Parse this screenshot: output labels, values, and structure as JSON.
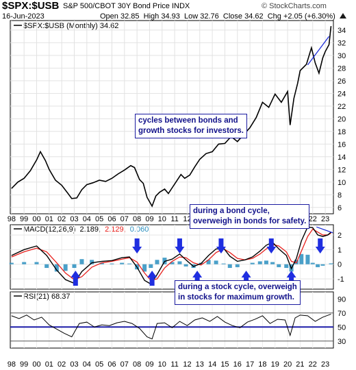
{
  "header": {
    "symbol": "$SPX:$USB",
    "name": "S&P 500/CBOT 30Y Bond Price INDX",
    "watermark": "© StockCharts.com",
    "date": "16-Jun-2023",
    "open_label": "Open",
    "open": "32.85",
    "high_label": "High",
    "high": "34.93",
    "low_label": "Low",
    "low": "32.76",
    "close_label": "Close",
    "close": "34.62",
    "chg_label": "Chg",
    "chg": "+2.05 (+6.30%)"
  },
  "annotations": {
    "cycles": [
      "cycles between bonds and",
      "growth stocks for investors."
    ],
    "bond": [
      "during a bond cycle,",
      "overweigh in bonds for safety."
    ],
    "stock": [
      "during a stock cycle, overweigh",
      "in stocks for maximum growth."
    ]
  },
  "colors": {
    "price": "#000000",
    "macd_signal": "#e8211d",
    "macd_hist": "#2a8fbf",
    "arrows": "#1f2ee0",
    "trendline": "#1a2ad8",
    "rsi_line": "#1c1ca8",
    "annotation_text": "#12128a"
  },
  "chart_data": [
    {
      "type": "line",
      "legend": "$SPX:$USB (Monthly) 34.62",
      "x_tick_labels": [
        "98",
        "99",
        "00",
        "01",
        "02",
        "03",
        "04",
        "05",
        "06",
        "07",
        "08",
        "09",
        "10",
        "11",
        "12",
        "13",
        "14",
        "15",
        "16",
        "17",
        "18",
        "19",
        "20",
        "21",
        "22",
        "23"
      ],
      "y_ticks": [
        6,
        8,
        10,
        12,
        14,
        16,
        18,
        20,
        22,
        24,
        26,
        28,
        30,
        32,
        34
      ],
      "ylim": [
        5,
        35.5
      ],
      "series": [
        {
          "name": "$SPX:$USB",
          "x": [
            1998.0,
            1998.5,
            1999.0,
            1999.5,
            2000.0,
            2000.3,
            2000.7,
            2001.0,
            2001.5,
            2002.0,
            2002.5,
            2002.8,
            2003.2,
            2003.6,
            2004.0,
            2004.5,
            2005.0,
            2005.5,
            2006.0,
            2006.5,
            2007.0,
            2007.5,
            2007.8,
            2008.2,
            2008.5,
            2008.8,
            2009.2,
            2009.5,
            2009.8,
            2010.2,
            2010.5,
            2011.0,
            2011.5,
            2011.8,
            2012.2,
            2012.6,
            2013.0,
            2013.5,
            2014.0,
            2014.5,
            2015.0,
            2015.5,
            2016.0,
            2016.5,
            2017.0,
            2017.5,
            2018.0,
            2018.5,
            2019.0,
            2019.5,
            2020.0,
            2020.2,
            2020.5,
            2020.8,
            2021.0,
            2021.5,
            2021.9,
            2022.2,
            2022.5,
            2022.8,
            2023.0,
            2023.3,
            2023.46
          ],
          "values": [
            9.0,
            10.0,
            10.6,
            11.8,
            13.5,
            14.8,
            13.4,
            12.0,
            10.3,
            9.5,
            8.2,
            7.4,
            7.5,
            8.8,
            9.6,
            9.9,
            10.3,
            10.1,
            10.6,
            11.3,
            11.9,
            12.6,
            12.3,
            10.4,
            9.8,
            7.6,
            6.2,
            7.8,
            8.4,
            8.9,
            8.2,
            9.7,
            11.2,
            10.6,
            11.1,
            12.4,
            13.6,
            14.5,
            14.8,
            16.0,
            16.1,
            17.2,
            16.4,
            17.5,
            18.6,
            20.2,
            22.6,
            21.8,
            23.9,
            22.6,
            24.3,
            19.0,
            23.2,
            25.6,
            27.6,
            28.6,
            31.2,
            28.8,
            27.2,
            29.6,
            30.6,
            31.7,
            34.62
          ]
        }
      ],
      "trendline": {
        "x": [
          2021.6,
          2023.3
        ],
        "y": [
          28.5,
          33.0
        ]
      }
    },
    {
      "type": "line",
      "legend": "MACD(12,26,9) 2.189, 2.129, 0.060",
      "legend_parts": [
        "MACD(12,26,9)",
        "2.189,",
        "2.129,",
        "0.060"
      ],
      "y_ticks": [
        -1,
        0,
        1,
        2
      ],
      "ylim": [
        -1.7,
        2.7
      ],
      "series": [
        {
          "name": "MACD",
          "x": [
            1998.0,
            1999.0,
            2000.0,
            2000.8,
            2001.6,
            2002.3,
            2003.0,
            2003.6,
            2004.4,
            2005.2,
            2006.0,
            2006.8,
            2007.4,
            2008.0,
            2008.6,
            2009.1,
            2009.6,
            2010.2,
            2010.8,
            2011.4,
            2011.9,
            2012.5,
            2013.1,
            2013.7,
            2014.3,
            2014.9,
            2015.4,
            2016.0,
            2016.6,
            2017.2,
            2017.8,
            2018.3,
            2018.8,
            2019.3,
            2019.9,
            2020.3,
            2020.7,
            2021.1,
            2021.6,
            2022.0,
            2022.4,
            2022.8,
            2023.2,
            2023.46
          ],
          "values": [
            0.6,
            1.0,
            1.25,
            0.6,
            -0.4,
            -1.05,
            -1.3,
            -0.5,
            0.1,
            0.2,
            0.25,
            0.45,
            0.5,
            -0.2,
            -1.1,
            -1.35,
            -0.7,
            0.2,
            0.35,
            0.7,
            0.3,
            -0.15,
            0.05,
            0.6,
            1.05,
            1.1,
            0.55,
            0.2,
            0.3,
            0.5,
            0.9,
            1.3,
            1.5,
            1.05,
            0.6,
            -0.3,
            0.4,
            1.6,
            2.55,
            2.5,
            2.0,
            1.9,
            2.0,
            2.189
          ]
        },
        {
          "name": "Signal",
          "x": [
            1998.0,
            1999.0,
            2000.0,
            2000.8,
            2001.6,
            2002.3,
            2003.0,
            2003.6,
            2004.4,
            2005.2,
            2006.0,
            2006.8,
            2007.4,
            2008.0,
            2008.6,
            2009.1,
            2009.6,
            2010.2,
            2010.8,
            2011.4,
            2011.9,
            2012.5,
            2013.1,
            2013.7,
            2014.3,
            2014.9,
            2015.4,
            2016.0,
            2016.6,
            2017.2,
            2017.8,
            2018.3,
            2018.8,
            2019.3,
            2019.9,
            2020.3,
            2020.7,
            2021.1,
            2021.6,
            2022.0,
            2022.4,
            2022.8,
            2023.2,
            2023.46
          ],
          "values": [
            0.5,
            0.85,
            1.1,
            0.85,
            0.1,
            -0.6,
            -1.05,
            -0.85,
            -0.2,
            0.1,
            0.2,
            0.35,
            0.45,
            0.15,
            -0.6,
            -1.1,
            -1.0,
            -0.25,
            0.2,
            0.5,
            0.45,
            0.1,
            -0.05,
            0.3,
            0.8,
            1.05,
            0.8,
            0.4,
            0.3,
            0.4,
            0.7,
            1.05,
            1.35,
            1.25,
            0.85,
            0.2,
            0.1,
            0.9,
            1.9,
            2.4,
            2.2,
            2.0,
            2.0,
            2.129
          ]
        },
        {
          "name": "Histogram",
          "x": [
            1998.0,
            1999.0,
            2000.0,
            2000.8,
            2001.6,
            2002.3,
            2003.0,
            2003.6,
            2004.4,
            2005.2,
            2006.0,
            2006.8,
            2007.4,
            2008.0,
            2008.6,
            2009.1,
            2009.6,
            2010.2,
            2010.8,
            2011.4,
            2011.9,
            2012.5,
            2013.1,
            2013.7,
            2014.3,
            2014.9,
            2015.4,
            2016.0,
            2016.6,
            2017.2,
            2017.8,
            2018.3,
            2018.8,
            2019.3,
            2019.9,
            2020.3,
            2020.7,
            2021.1,
            2021.6,
            2022.0,
            2022.4,
            2022.8,
            2023.2,
            2023.46
          ],
          "values": [
            0.1,
            0.15,
            0.15,
            -0.25,
            -0.5,
            -0.45,
            -0.25,
            0.35,
            0.3,
            0.1,
            0.05,
            0.1,
            0.05,
            -0.35,
            -0.5,
            -0.25,
            0.3,
            0.45,
            0.15,
            0.2,
            -0.15,
            -0.25,
            0.1,
            0.3,
            0.25,
            0.05,
            -0.25,
            -0.2,
            0.0,
            0.1,
            0.2,
            0.25,
            0.15,
            -0.2,
            -0.25,
            -0.5,
            0.3,
            0.7,
            0.65,
            0.1,
            -0.2,
            -0.1,
            0.0,
            0.06
          ]
        }
      ],
      "arrows_down_x": [
        2008.0,
        2011.4,
        2014.7,
        2018.7,
        2022.6
      ],
      "arrows_up_x": [
        2003.1,
        2009.2,
        2012.8,
        2016.7,
        2020.3
      ]
    },
    {
      "type": "line",
      "legend": "RSI(21) 68.37",
      "y_ticks": [
        30,
        50,
        70,
        90
      ],
      "ylim": [
        20,
        100
      ],
      "series": [
        {
          "name": "RSI",
          "x": [
            1998.0,
            1998.6,
            1999.2,
            1999.8,
            2000.4,
            2001.0,
            2001.6,
            2002.2,
            2002.8,
            2003.4,
            2004.0,
            2004.6,
            2005.2,
            2005.8,
            2006.4,
            2007.0,
            2007.6,
            2008.2,
            2008.8,
            2009.2,
            2009.6,
            2010.2,
            2010.8,
            2011.4,
            2012.0,
            2012.6,
            2013.2,
            2013.8,
            2014.4,
            2015.0,
            2015.6,
            2016.2,
            2016.8,
            2017.4,
            2018.0,
            2018.6,
            2019.2,
            2019.8,
            2020.2,
            2020.6,
            2021.0,
            2021.6,
            2022.2,
            2022.8,
            2023.46
          ],
          "values": [
            66,
            62,
            67,
            60,
            64,
            53,
            47,
            41,
            36,
            55,
            57,
            50,
            53,
            52,
            56,
            58,
            55,
            48,
            36,
            33,
            55,
            56,
            49,
            58,
            52,
            60,
            63,
            58,
            65,
            57,
            52,
            49,
            57,
            61,
            66,
            55,
            61,
            60,
            38,
            63,
            67,
            66,
            58,
            64,
            68.37
          ]
        }
      ],
      "reference_lines": [
        30,
        50,
        70
      ]
    }
  ]
}
